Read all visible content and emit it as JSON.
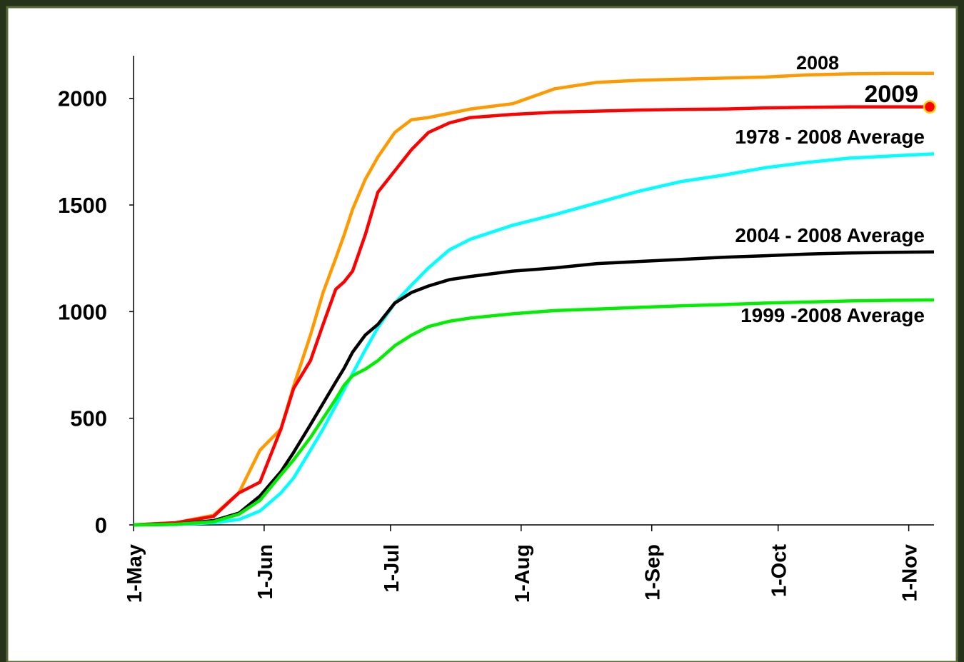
{
  "chart_data": {
    "type": "line",
    "x": [
      0,
      10,
      19,
      25,
      30,
      35,
      38,
      42,
      45,
      48,
      50,
      52,
      55,
      58,
      62,
      66,
      70,
      75,
      80,
      90,
      100,
      110,
      120,
      130,
      140,
      150,
      160,
      170,
      180,
      190
    ],
    "xlim": [
      0,
      190
    ],
    "xticks": [
      {
        "value": 0,
        "label": "1-May"
      },
      {
        "value": 31,
        "label": "1-Jun"
      },
      {
        "value": 61,
        "label": "1-Jul"
      },
      {
        "value": 92,
        "label": "1-Aug"
      },
      {
        "value": 123,
        "label": "1-Sep"
      },
      {
        "value": 153,
        "label": "1-Oct"
      },
      {
        "value": 184,
        "label": "1-Nov"
      }
    ],
    "ylim": [
      0,
      2200
    ],
    "yticks": [
      0,
      500,
      1000,
      1500,
      2000
    ],
    "series": [
      {
        "name": "2008",
        "color": "#ff9900",
        "values": [
          0,
          10,
          45,
          150,
          350,
          450,
          650,
          890,
          1090,
          1250,
          1360,
          1480,
          1620,
          1725,
          1840,
          1900,
          1910,
          1930,
          1950,
          1975,
          2045,
          2075,
          2085,
          2090,
          2095,
          2100,
          2110,
          2115,
          2117,
          2117
        ]
      },
      {
        "name": "2009",
        "color": "#ff0000",
        "values": [
          0,
          10,
          40,
          150,
          200,
          450,
          640,
          770,
          940,
          1105,
          1140,
          1190,
          1360,
          1560,
          1660,
          1760,
          1840,
          1885,
          1910,
          1925,
          1935,
          1940,
          1945,
          1948,
          1950,
          1955,
          1958,
          1960,
          1960,
          1960
        ]
      },
      {
        "name": "1978 - 2008 Average",
        "color": "#00ffff",
        "values": [
          0,
          2,
          10,
          25,
          65,
          150,
          220,
          350,
          450,
          560,
          635,
          710,
          820,
          925,
          1040,
          1125,
          1205,
          1290,
          1340,
          1405,
          1455,
          1510,
          1565,
          1610,
          1640,
          1675,
          1700,
          1720,
          1730,
          1740
        ]
      },
      {
        "name": "2004 - 2008 Average",
        "color": "#000000",
        "values": [
          0,
          3,
          20,
          55,
          135,
          250,
          340,
          470,
          570,
          670,
          735,
          810,
          890,
          940,
          1040,
          1090,
          1120,
          1150,
          1165,
          1190,
          1205,
          1225,
          1235,
          1245,
          1255,
          1262,
          1270,
          1275,
          1278,
          1280
        ]
      },
      {
        "name": "1999 -2008 Average",
        "color": "#00ee00",
        "values": [
          0,
          3,
          15,
          50,
          115,
          235,
          305,
          410,
          500,
          590,
          655,
          700,
          730,
          770,
          840,
          890,
          930,
          955,
          970,
          990,
          1005,
          1012,
          1020,
          1027,
          1033,
          1040,
          1045,
          1050,
          1053,
          1055
        ]
      }
    ]
  }
}
